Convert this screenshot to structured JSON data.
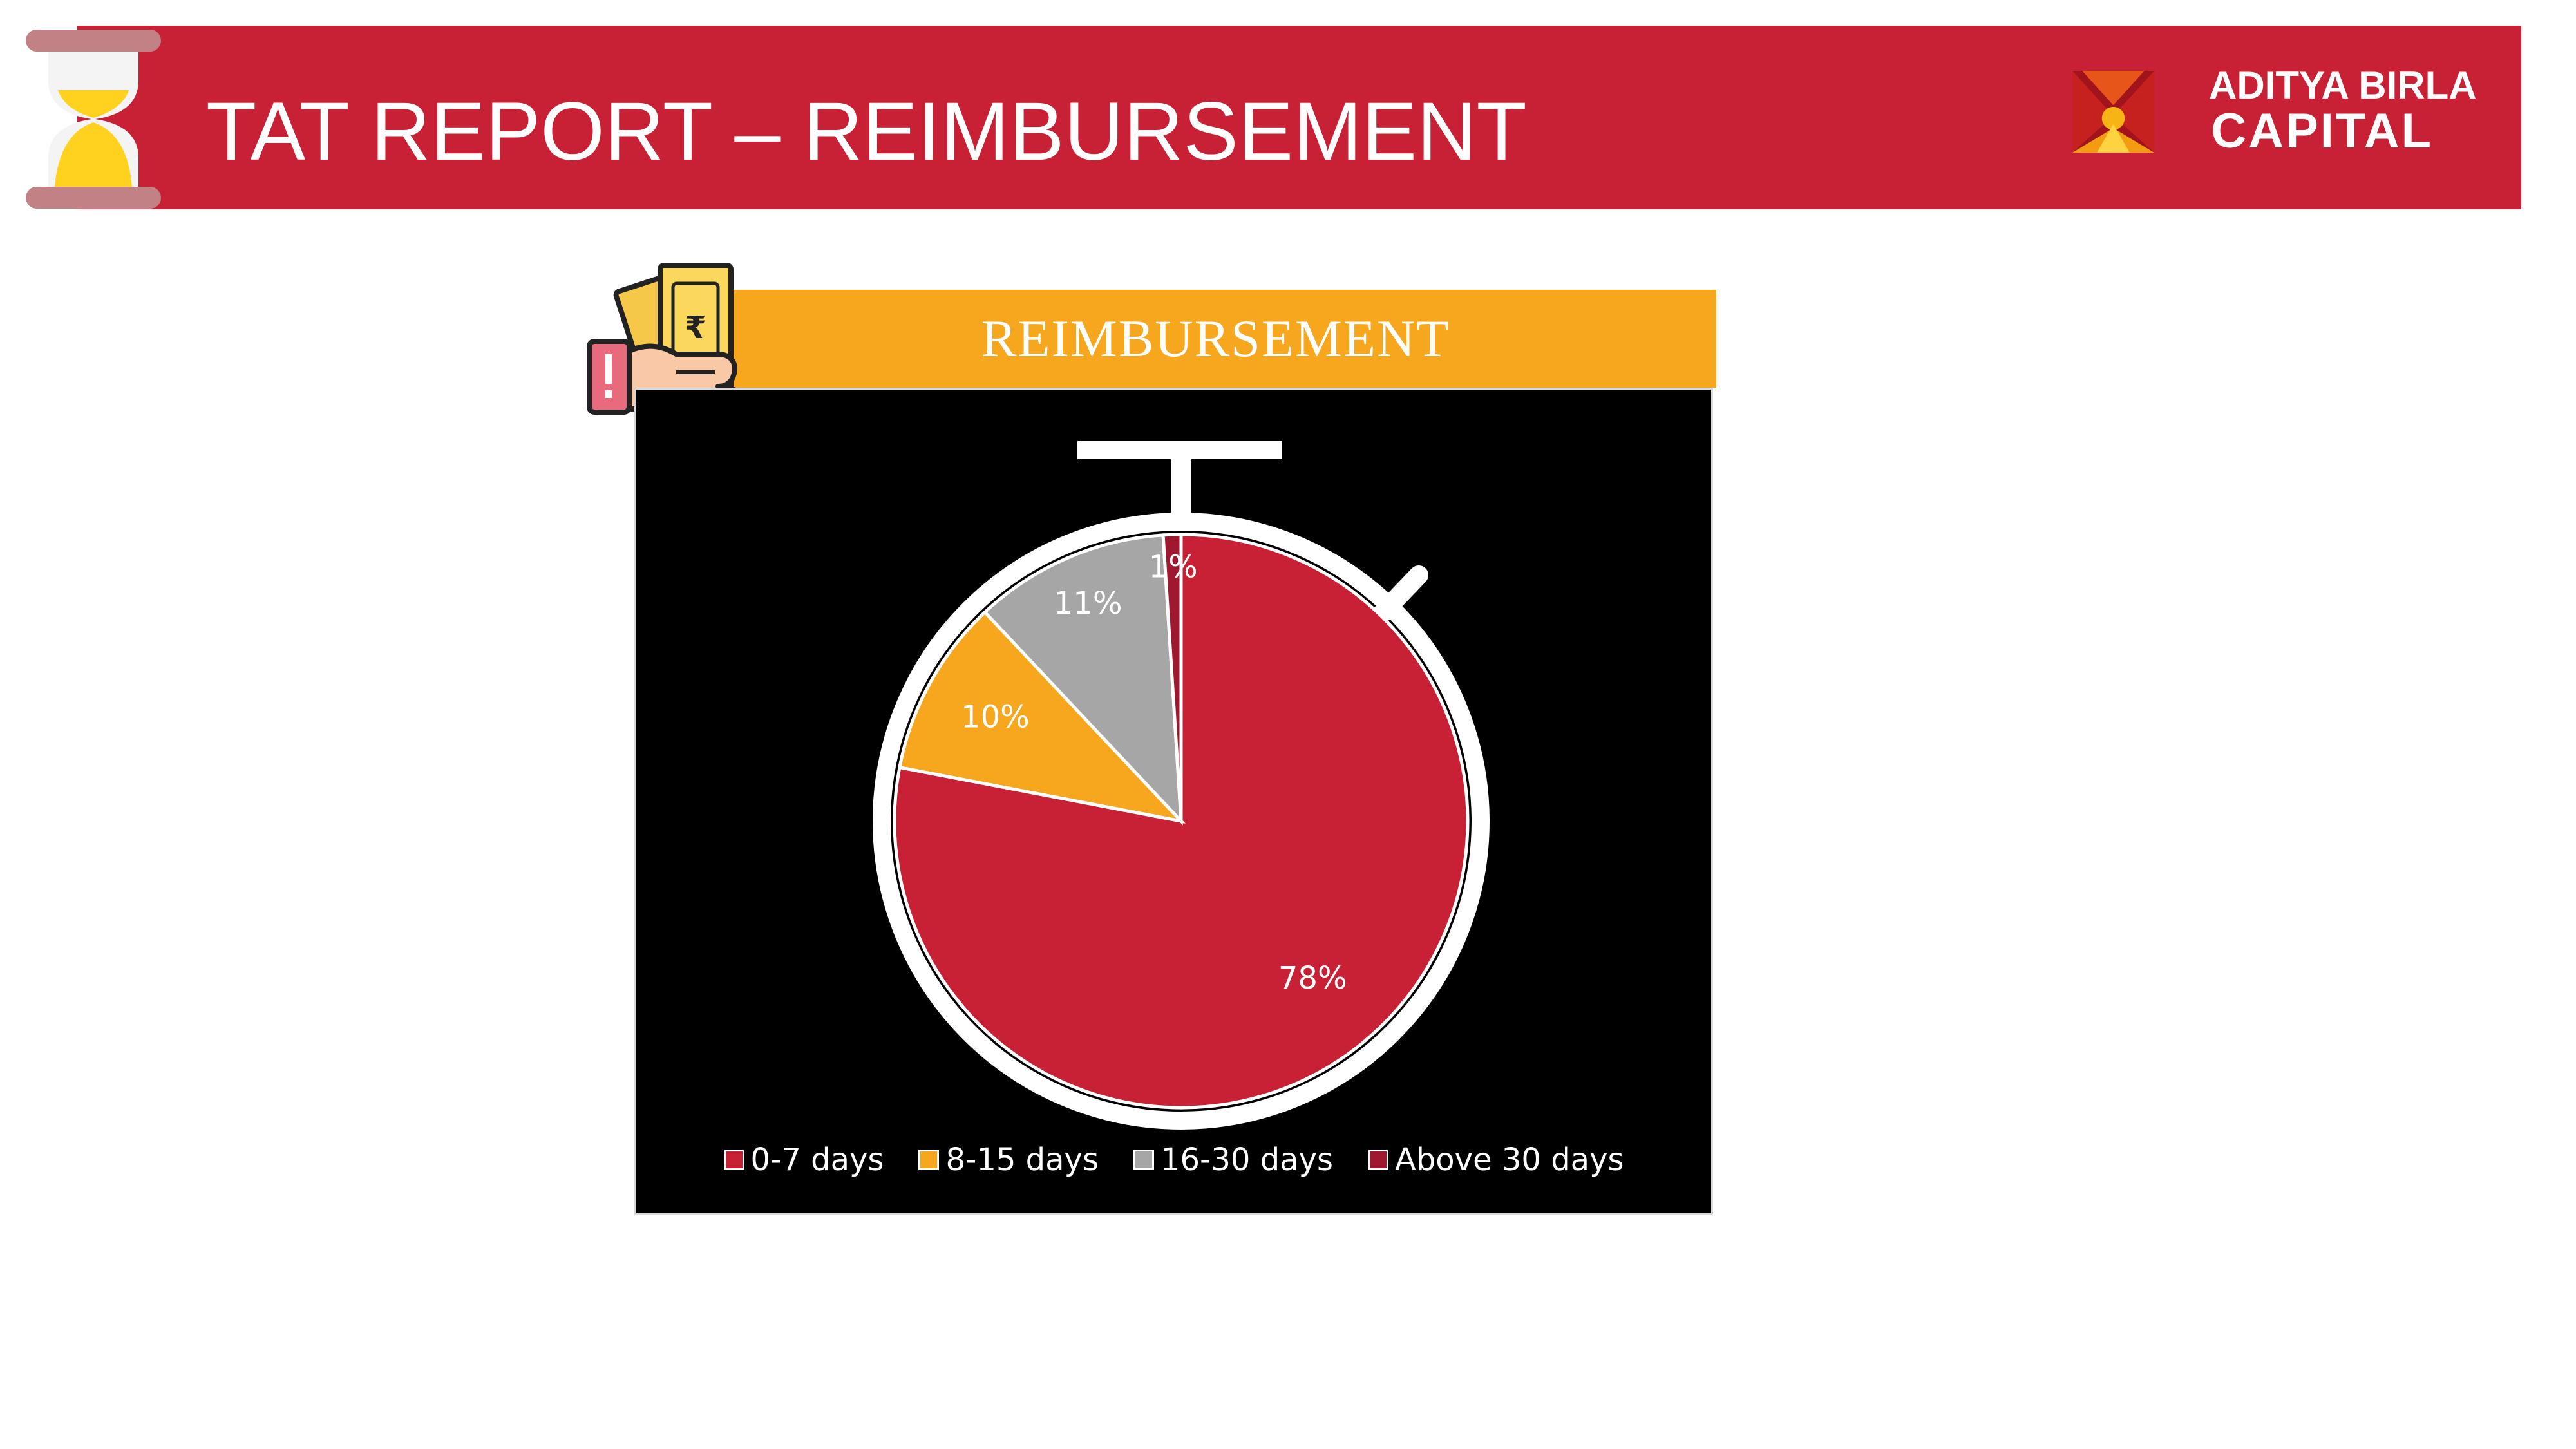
{
  "slide": {
    "title": "TAT REPORT – REIMBURSEMENT"
  },
  "logo": {
    "line1": "ADITYA BIRLA",
    "line2": "CAPITAL"
  },
  "icons": {
    "header": "hourglass-icon",
    "panel": "money-hand-icon",
    "logo": "aditya-birla-logo-mark"
  },
  "colors": {
    "header_band": "#c82035",
    "panel_title_bar": "#f7a71d",
    "chart_background": "#000000"
  },
  "chart_data": {
    "type": "pie",
    "title": "REIMBURSEMENT",
    "categories": [
      "0-7 days",
      "8-15 days",
      "16-30 days",
      "Above 30 days"
    ],
    "values": [
      78,
      10,
      11,
      1
    ],
    "labels": [
      "78%",
      "10%",
      "11%",
      "1%"
    ],
    "colors": [
      "#c82035",
      "#f7a71d",
      "#a6a6a6",
      "#a01830"
    ],
    "legend": "bottom"
  }
}
